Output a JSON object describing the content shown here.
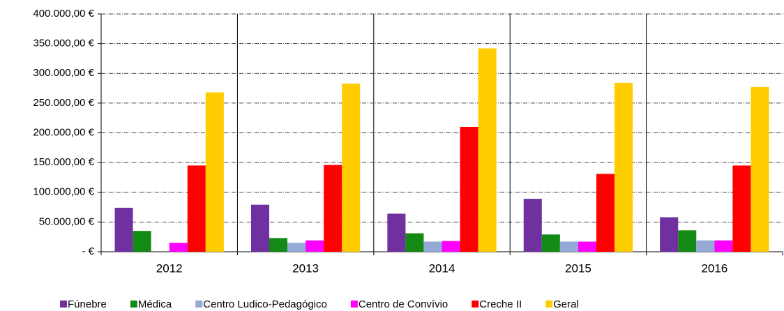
{
  "chart_data": {
    "type": "bar",
    "categories": [
      "2012",
      "2013",
      "2014",
      "2015",
      "2016"
    ],
    "series": [
      {
        "name": "Fúnebre",
        "color": "#7030a0",
        "values": [
          74000,
          79000,
          64000,
          89000,
          58000
        ]
      },
      {
        "name": "Médica",
        "color": "#138a13",
        "values": [
          35000,
          23000,
          31000,
          29000,
          36000
        ]
      },
      {
        "name": "Centro Ludico-Pedagógico",
        "color": "#95a9d6",
        "values": [
          0,
          15000,
          17000,
          17000,
          19000
        ]
      },
      {
        "name": "Centro de Convívio",
        "color": "#ff00ff",
        "values": [
          15000,
          19000,
          18000,
          17000,
          19000
        ]
      },
      {
        "name": "Creche II",
        "color": "#ff0000",
        "values": [
          145000,
          146000,
          210000,
          131000,
          145000
        ]
      },
      {
        "name": "Geral",
        "color": "#ffcc00",
        "values": [
          268000,
          283000,
          342000,
          284000,
          277000
        ]
      }
    ],
    "ylim": [
      0,
      400000
    ],
    "yticks": [
      {
        "value": 0,
        "label": "-   €"
      },
      {
        "value": 50000,
        "label": "50.000,00 €"
      },
      {
        "value": 100000,
        "label": "100.000,00 €"
      },
      {
        "value": 150000,
        "label": "150.000,00 €"
      },
      {
        "value": 200000,
        "label": "200.000,00 €"
      },
      {
        "value": 250000,
        "label": "250.000,00 €"
      },
      {
        "value": 300000,
        "label": "300.000,00 €"
      },
      {
        "value": 350000,
        "label": "350.000,00 €"
      },
      {
        "value": 400000,
        "label": "400.000,00 €"
      }
    ],
    "grid": true,
    "legend": "bottom"
  }
}
